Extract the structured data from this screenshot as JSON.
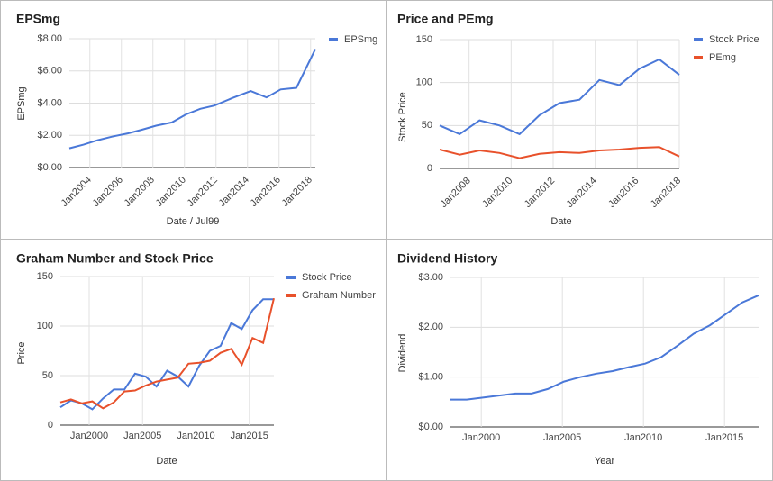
{
  "chart_data": [
    {
      "type": "line",
      "title": "EPSmg",
      "x_label": "Date / Jul99",
      "y_label": "EPSmg",
      "grid": true,
      "legend": "right",
      "x": [
        2002.7,
        2003.6,
        2004.5,
        2005.4,
        2006.4,
        2007.3,
        2008.2,
        2009.2,
        2010.1,
        2011.0,
        2011.9,
        2013.0,
        2014.2,
        2015.2,
        2016.1,
        2017.1,
        2018.3
      ],
      "series": [
        {
          "name": "EPSmg",
          "color": "#4a78d8",
          "values": [
            1.2,
            1.42,
            1.7,
            1.92,
            2.12,
            2.35,
            2.6,
            2.8,
            3.3,
            3.65,
            3.85,
            4.3,
            4.75,
            4.35,
            4.85,
            4.95,
            7.35
          ]
        }
      ],
      "xlim": [
        2002.7,
        2018.3
      ],
      "xticks": [
        {
          "value": 2004,
          "label": "Jan2004"
        },
        {
          "value": 2006,
          "label": "Jan2006"
        },
        {
          "value": 2008,
          "label": "Jan2008"
        },
        {
          "value": 2010,
          "label": "Jan2010"
        },
        {
          "value": 2012,
          "label": "Jan2012"
        },
        {
          "value": 2014,
          "label": "Jan2014"
        },
        {
          "value": 2016,
          "label": "Jan2016"
        },
        {
          "value": 2018,
          "label": "Jan2018"
        }
      ],
      "ylim": [
        0,
        8
      ],
      "yticks": [
        {
          "value": 0,
          "label": "$0.00"
        },
        {
          "value": 2,
          "label": "$2.00"
        },
        {
          "value": 4,
          "label": "$4.00"
        },
        {
          "value": 6,
          "label": "$6.00"
        },
        {
          "value": 8,
          "label": "$8.00"
        }
      ]
    },
    {
      "type": "line",
      "title": "Price and PEmg",
      "x_label": "Date",
      "y_label": "Stock Price",
      "grid": true,
      "legend": "right",
      "x": [
        2006.6,
        2007.55,
        2008.5,
        2009.45,
        2010.4,
        2011.35,
        2012.3,
        2013.25,
        2014.2,
        2015.15,
        2016.1,
        2017.05,
        2018.0
      ],
      "series": [
        {
          "name": "Stock Price",
          "color": "#4a78d8",
          "values": [
            50,
            40,
            56,
            50,
            40,
            62,
            76,
            80,
            103,
            97,
            116,
            127,
            109
          ]
        },
        {
          "name": "PEmg",
          "color": "#e8512b",
          "values": [
            22,
            16,
            21,
            18,
            12,
            17,
            19,
            18,
            21,
            22,
            24,
            25,
            14
          ]
        }
      ],
      "xlim": [
        2006.6,
        2018.0
      ],
      "xticks": [
        {
          "value": 2008,
          "label": "Jan2008"
        },
        {
          "value": 2010,
          "label": "Jan2010"
        },
        {
          "value": 2012,
          "label": "Jan2012"
        },
        {
          "value": 2014,
          "label": "Jan2014"
        },
        {
          "value": 2016,
          "label": "Jan2016"
        },
        {
          "value": 2018,
          "label": "Jan2018"
        }
      ],
      "ylim": [
        0,
        150
      ],
      "yticks": [
        0,
        50,
        100,
        150
      ]
    },
    {
      "type": "line",
      "title": "Graham Number and Stock Price",
      "x_label": "Date",
      "y_label": "Price",
      "grid": true,
      "legend": "right",
      "x": [
        1997.3,
        1998.3,
        1999.3,
        2000.3,
        2001.3,
        2002.3,
        2003.3,
        2004.3,
        2005.3,
        2006.3,
        2007.3,
        2008.3,
        2009.3,
        2010.3,
        2011.3,
        2012.3,
        2013.3,
        2014.3,
        2015.3,
        2016.3,
        2017.3
      ],
      "series": [
        {
          "name": "Stock Price",
          "color": "#4a78d8",
          "values": [
            18,
            25,
            22,
            16,
            27,
            36,
            36,
            52,
            49,
            39,
            55,
            49,
            39,
            60,
            75,
            80,
            103,
            97,
            116,
            127,
            127
          ]
        },
        {
          "name": "Graham Number",
          "color": "#e8512b",
          "values": [
            23,
            26,
            22,
            24,
            17,
            23,
            34,
            35,
            40,
            44,
            46,
            48,
            62,
            63,
            65,
            73,
            77,
            61,
            88,
            83,
            128
          ]
        }
      ],
      "xlim": [
        1997.3,
        2017.3
      ],
      "xticks": [
        {
          "value": 2000,
          "label": "Jan2000"
        },
        {
          "value": 2005,
          "label": "Jan2005"
        },
        {
          "value": 2010,
          "label": "Jan2010"
        },
        {
          "value": 2015,
          "label": "Jan2015"
        }
      ],
      "ylim": [
        0,
        150
      ],
      "yticks": [
        0,
        50,
        100,
        150
      ]
    },
    {
      "type": "line",
      "title": "Dividend History",
      "x_label": "Year",
      "y_label": "Dividend",
      "grid": true,
      "x": [
        1998.1,
        1999.1,
        2000.1,
        2001.1,
        2002.1,
        2003.1,
        2004.1,
        2005.1,
        2006.1,
        2007.1,
        2008.1,
        2009.1,
        2010.1,
        2011.1,
        2012.1,
        2013.1,
        2014.1,
        2015.1,
        2016.1,
        2017.1
      ],
      "values": [
        0.55,
        0.55,
        0.59,
        0.63,
        0.67,
        0.67,
        0.76,
        0.91,
        1.0,
        1.07,
        1.12,
        1.2,
        1.27,
        1.4,
        1.63,
        1.87,
        2.04,
        2.27,
        2.5,
        2.64
      ],
      "color": "#4a78d8",
      "xlim": [
        1998.1,
        2017.1
      ],
      "xticks": [
        {
          "value": 2000,
          "label": "Jan2000"
        },
        {
          "value": 2005,
          "label": "Jan2005"
        },
        {
          "value": 2010,
          "label": "Jan2010"
        },
        {
          "value": 2015,
          "label": "Jan2015"
        }
      ],
      "ylim": [
        0,
        3
      ],
      "yticks": [
        {
          "value": 0,
          "label": "$0.00"
        },
        {
          "value": 1,
          "label": "$1.00"
        },
        {
          "value": 2,
          "label": "$2.00"
        },
        {
          "value": 3,
          "label": "$3.00"
        }
      ]
    }
  ]
}
